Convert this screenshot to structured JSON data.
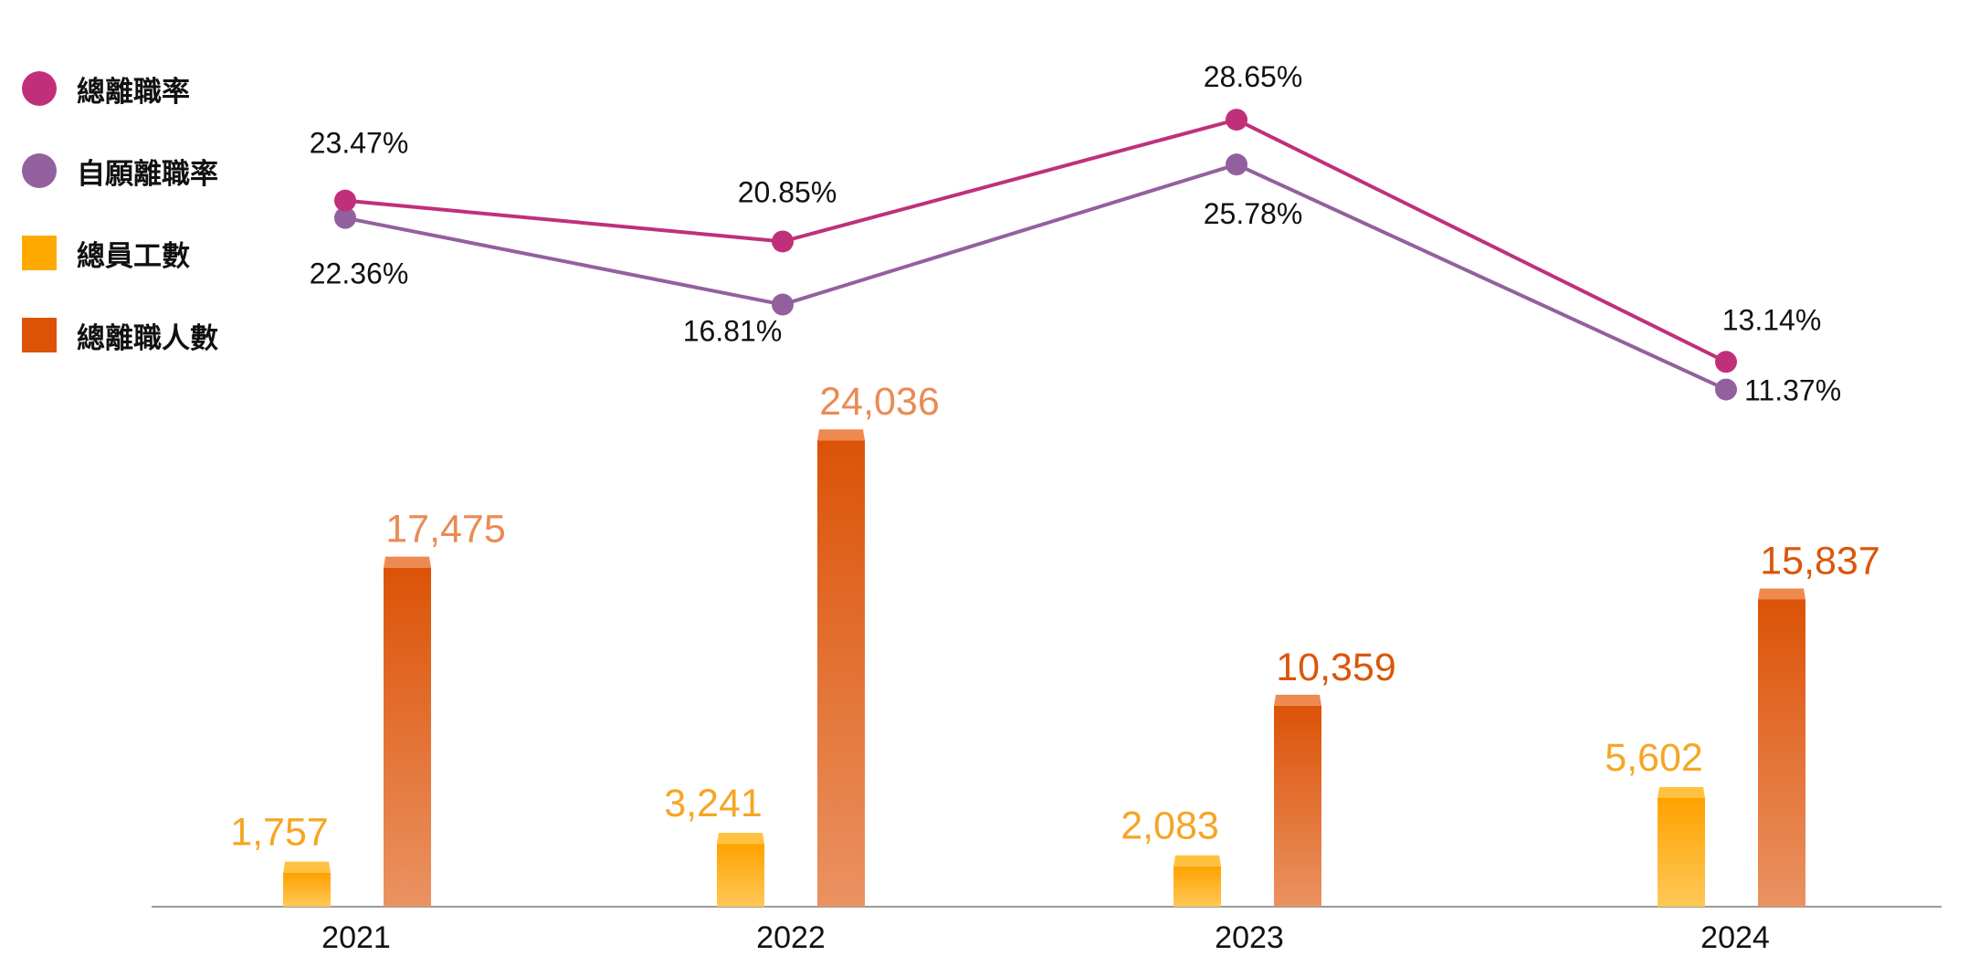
{
  "chart_data": {
    "type": "bar",
    "categories": [
      "2021",
      "2022",
      "2023",
      "2024"
    ],
    "series": [
      {
        "name": "總員工數",
        "kind": "bar",
        "values": [
          1757,
          3241,
          2083,
          5602
        ],
        "labels": [
          "1,757",
          "3,241",
          "2,083",
          "5,602"
        ],
        "color": "#F5A623"
      },
      {
        "name": "總離職人數",
        "kind": "bar",
        "values": [
          17475,
          24036,
          10359,
          15837
        ],
        "labels": [
          "17,475",
          "24,036",
          "10,359",
          "15,837"
        ],
        "color": "#DC5307"
      },
      {
        "name": "總離職率",
        "kind": "line",
        "values": [
          23.47,
          20.85,
          28.65,
          13.14
        ],
        "labels": [
          "23.47%",
          "20.85%",
          "28.65%",
          "13.14%"
        ],
        "color": "#C0307A"
      },
      {
        "name": "自願離職率",
        "kind": "line",
        "values": [
          22.36,
          16.81,
          25.78,
          11.37
        ],
        "labels": [
          "22.36%",
          "16.81%",
          "25.78%",
          "11.37%"
        ],
        "color": "#93609E"
      }
    ],
    "legend_position": "top-left",
    "grid": false
  },
  "legend": [
    {
      "label": "總離職率",
      "shape": "circle",
      "color": "#C0307A"
    },
    {
      "label": "自願離職率",
      "shape": "circle",
      "color": "#93609E"
    },
    {
      "label": "總員工數",
      "shape": "square",
      "color": "#F5A623"
    },
    {
      "label": "總離職人數",
      "shape": "square",
      "color": "#DC5307"
    }
  ]
}
